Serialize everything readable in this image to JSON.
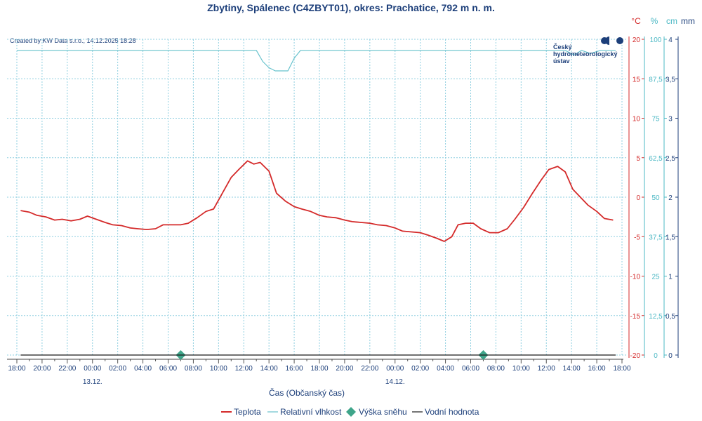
{
  "colors": {
    "temperature": "#d42a2a",
    "humidity": "#66c2cc",
    "snow": "#3fa58a",
    "water": "#1a1a1a",
    "grid": "#8fcfe0",
    "text": "#1d3f7a",
    "temp_axis": "#d42a2a",
    "hum_axis": "#4bb8c4",
    "mm_axis": "#1d3f7a"
  },
  "credit": "Created by KW Data s.r.o., 14.12.2025 18:28",
  "logo": {
    "icon": "chmu-logo-icon",
    "lines": [
      "Český",
      "hydrometeorologický",
      "ústav"
    ]
  },
  "chart_data": {
    "type": "line",
    "title": "Zbytiny, Spálenec (C4ZBYT01), okres: Prachatice, 792 m n. m.",
    "xlabel": "Čas (Občanský čas)",
    "x_range_hours": [
      0,
      48
    ],
    "x_ticks": [
      "18:00",
      "20:00",
      "22:00",
      "00:00",
      "02:00",
      "04:00",
      "06:00",
      "08:00",
      "10:00",
      "12:00",
      "14:00",
      "16:00",
      "18:00",
      "20:00",
      "22:00",
      "00:00",
      "02:00",
      "04:00",
      "06:00",
      "08:00",
      "10:00",
      "12:00",
      "14:00",
      "16:00",
      "18:00"
    ],
    "date_labels": [
      {
        "label": "13.12.",
        "hour": 6
      },
      {
        "label": "14.12.",
        "hour": 30
      }
    ],
    "axes": {
      "temperature": {
        "unit": "°C",
        "range": [
          -20,
          20
        ],
        "ticks": [
          "20",
          "15",
          "10",
          "5",
          "0",
          "-5",
          "-10",
          "-15",
          "-20"
        ]
      },
      "humidity": {
        "unit": "%",
        "range": [
          0,
          100
        ],
        "ticks": [
          "100",
          "87,5",
          "75",
          "62,5",
          "50",
          "37,5",
          "25",
          "12,5",
          "0"
        ]
      },
      "height": {
        "unit": "cm",
        "range": [
          0,
          4
        ],
        "ticks": [
          "4",
          "3,5",
          "3",
          "2,5",
          "2",
          "1,5",
          "1",
          "0,5",
          "0"
        ]
      },
      "water": {
        "unit": "mm"
      }
    },
    "legend": [
      "Teplota",
      "Relativní vlhkost",
      "Výška sněhu",
      "Vodní hodnota"
    ],
    "series": [
      {
        "name": "Teplota",
        "axis": "temperature",
        "points": [
          [
            0.3,
            -1.7
          ],
          [
            1,
            -1.9
          ],
          [
            1.6,
            -2.3
          ],
          [
            2.3,
            -2.5
          ],
          [
            3,
            -2.9
          ],
          [
            3.6,
            -2.8
          ],
          [
            4.3,
            -3.0
          ],
          [
            5,
            -2.8
          ],
          [
            5.6,
            -2.4
          ],
          [
            6.3,
            -2.8
          ],
          [
            7,
            -3.2
          ],
          [
            7.6,
            -3.5
          ],
          [
            8.3,
            -3.6
          ],
          [
            9,
            -3.9
          ],
          [
            9.6,
            -4.0
          ],
          [
            10.3,
            -4.1
          ],
          [
            11,
            -4.0
          ],
          [
            11.6,
            -3.5
          ],
          [
            12.3,
            -3.5
          ],
          [
            13,
            -3.5
          ],
          [
            13.6,
            -3.3
          ],
          [
            14.3,
            -2.6
          ],
          [
            15,
            -1.8
          ],
          [
            15.6,
            -1.5
          ],
          [
            16.3,
            0.5
          ],
          [
            17,
            2.5
          ],
          [
            17.6,
            3.5
          ],
          [
            18.3,
            4.6
          ],
          [
            18.8,
            4.2
          ],
          [
            19.3,
            4.4
          ],
          [
            20,
            3.3
          ],
          [
            20.6,
            0.5
          ],
          [
            21.3,
            -0.5
          ],
          [
            22,
            -1.2
          ],
          [
            22.6,
            -1.5
          ],
          [
            23.3,
            -1.8
          ],
          [
            24,
            -2.3
          ],
          [
            24.6,
            -2.5
          ],
          [
            25.3,
            -2.6
          ],
          [
            26,
            -2.9
          ],
          [
            26.6,
            -3.1
          ],
          [
            27.3,
            -3.2
          ],
          [
            28,
            -3.3
          ],
          [
            28.6,
            -3.5
          ],
          [
            29.3,
            -3.6
          ],
          [
            30,
            -3.9
          ],
          [
            30.6,
            -4.3
          ],
          [
            31.3,
            -4.4
          ],
          [
            32,
            -4.5
          ],
          [
            32.6,
            -4.8
          ],
          [
            33.3,
            -5.2
          ],
          [
            33.9,
            -5.6
          ],
          [
            34.5,
            -5.0
          ],
          [
            35,
            -3.5
          ],
          [
            35.6,
            -3.3
          ],
          [
            36.2,
            -3.3
          ],
          [
            36.8,
            -4.0
          ],
          [
            37.5,
            -4.5
          ],
          [
            38.2,
            -4.5
          ],
          [
            38.9,
            -4.0
          ],
          [
            39.5,
            -2.8
          ],
          [
            40.2,
            -1.3
          ],
          [
            40.9,
            0.5
          ],
          [
            41.6,
            2.2
          ],
          [
            42.2,
            3.5
          ],
          [
            42.9,
            3.9
          ],
          [
            43.5,
            3.2
          ],
          [
            44.1,
            1.0
          ],
          [
            44.7,
            0
          ],
          [
            45.3,
            -1.0
          ],
          [
            46,
            -1.8
          ],
          [
            46.6,
            -2.7
          ],
          [
            47.3,
            -2.9
          ]
        ]
      },
      {
        "name": "Relativní vlhkost",
        "axis": "humidity",
        "points": [
          [
            0,
            96.5
          ],
          [
            19,
            96.5
          ],
          [
            19.5,
            93
          ],
          [
            20,
            91
          ],
          [
            20.5,
            90
          ],
          [
            21,
            90
          ],
          [
            21.5,
            90
          ],
          [
            22,
            94
          ],
          [
            22.5,
            96.5
          ],
          [
            43.5,
            96.5
          ],
          [
            44.2,
            95
          ],
          [
            44.8,
            96.5
          ],
          [
            45.5,
            95.5
          ],
          [
            46.3,
            96.5
          ],
          [
            47.5,
            96.5
          ]
        ]
      },
      {
        "name": "Výška sněhu",
        "axis": "height",
        "points": [
          [
            13,
            0
          ],
          [
            37,
            0
          ]
        ]
      },
      {
        "name": "Vodní hodnota",
        "axis": "height",
        "points": [
          [
            0.3,
            0
          ],
          [
            47.5,
            0
          ]
        ]
      }
    ]
  }
}
